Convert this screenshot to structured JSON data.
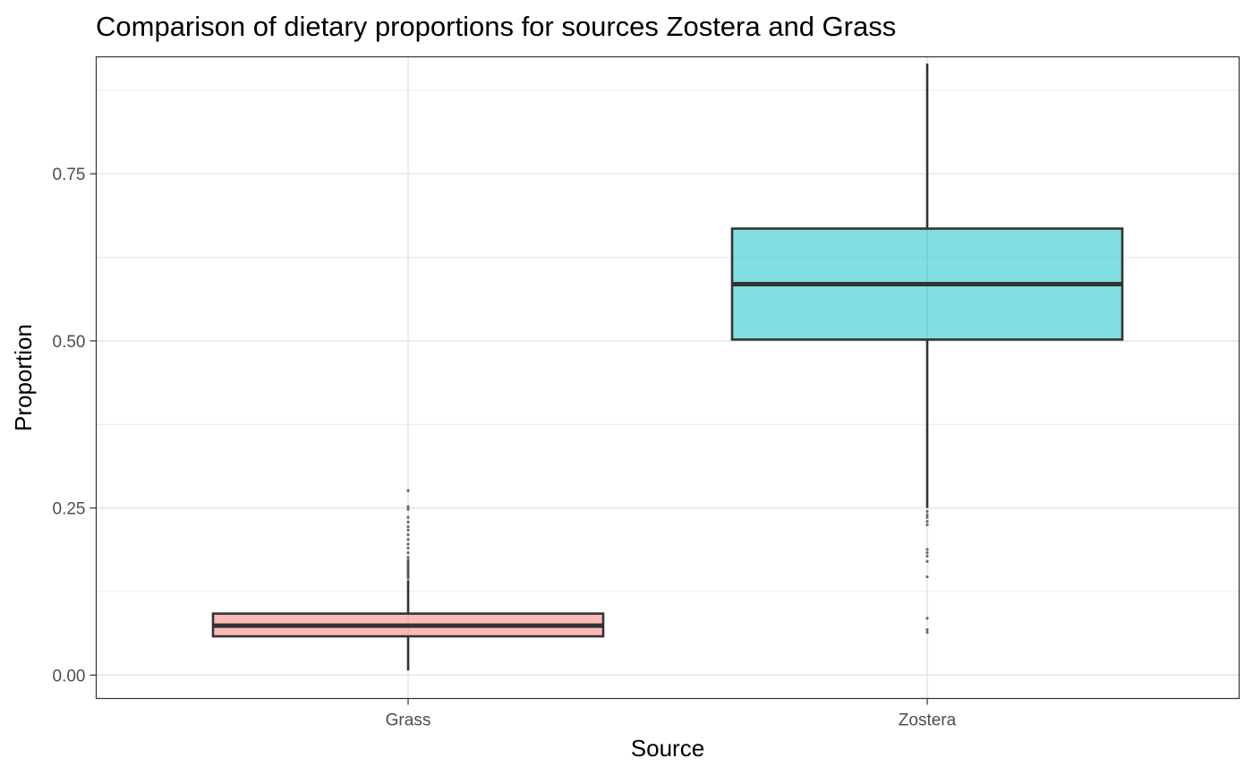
{
  "chart_data": {
    "type": "box",
    "title": "Comparison of dietary proportions for sources  Zostera  and  Grass",
    "xlabel": "Source",
    "ylabel": "Proportion",
    "ylim": [
      -0.035,
      0.925
    ],
    "y_ticks": [
      {
        "value": 0.0,
        "label": "0.00"
      },
      {
        "value": 0.25,
        "label": "0.25"
      },
      {
        "value": 0.5,
        "label": "0.50"
      },
      {
        "value": 0.75,
        "label": "0.75"
      }
    ],
    "y_minor_ticks": [
      0.125,
      0.375,
      0.625,
      0.875
    ],
    "categories": [
      "Grass",
      "Zostera"
    ],
    "grid": true,
    "legend": "none",
    "series": [
      {
        "category": "Grass",
        "color": "#F8766D",
        "whisker_low": 0.007,
        "q1": 0.058,
        "median": 0.074,
        "q3": 0.092,
        "whisker_high": 0.142,
        "outliers": [
          0.276,
          0.252,
          0.248,
          0.236,
          0.229,
          0.222,
          0.217,
          0.21,
          0.203,
          0.196,
          0.19,
          0.183,
          0.176,
          0.172,
          0.169,
          0.166,
          0.163,
          0.16,
          0.157,
          0.154,
          0.151,
          0.148,
          0.145
        ]
      },
      {
        "category": "Zostera",
        "color": "#00BFC4",
        "whisker_low": 0.25,
        "q1": 0.502,
        "median": 0.585,
        "q3": 0.668,
        "whisker_high": 0.915,
        "outliers": [
          0.245,
          0.24,
          0.236,
          0.23,
          0.225,
          0.188,
          0.183,
          0.178,
          0.17,
          0.147,
          0.085,
          0.068,
          0.064
        ]
      }
    ],
    "colors": {
      "panel_border": "#333333",
      "grid": "#ebebeb",
      "box_line": "#333333"
    }
  }
}
